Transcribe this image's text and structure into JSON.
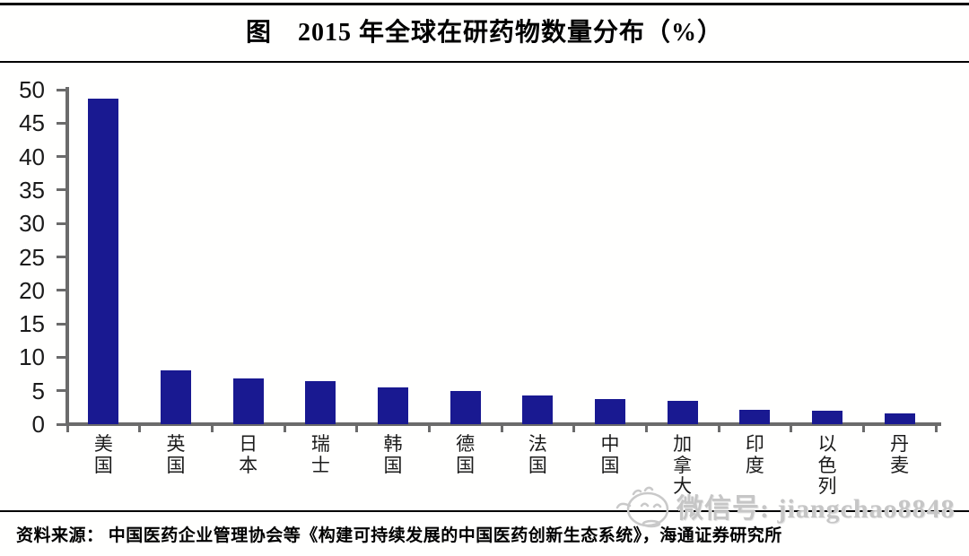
{
  "header": {
    "title": "图　2015 年全球在研药物数量分布（%）"
  },
  "chart_data": {
    "type": "bar",
    "title": "2015 年全球在研药物数量分布（%）",
    "categories": [
      "美国",
      "英国",
      "日本",
      "瑞士",
      "韩国",
      "德国",
      "法国",
      "中国",
      "加拿大",
      "印度",
      "以色列",
      "丹麦"
    ],
    "values": [
      48.7,
      8.0,
      6.9,
      6.4,
      5.5,
      5.0,
      4.3,
      3.8,
      3.5,
      2.1,
      2.0,
      1.6
    ],
    "xlabel": "",
    "ylabel": "",
    "ylim": [
      0,
      50
    ],
    "ytick_interval": 5,
    "ytick_labels": [
      "0",
      "5",
      "10",
      "15",
      "20",
      "25",
      "30",
      "35",
      "40",
      "45",
      "50"
    ],
    "grid": false,
    "legend": false,
    "bar_color": "#191991",
    "axis_color": "#6b6b6b"
  },
  "watermark": {
    "icon": "wechat-mascot-icon",
    "text": "微信号: jiangchao8848",
    "color": "#c6c6c6"
  },
  "footer": {
    "source": "资料来源： 中国医药企业管理协会等《构建可持续发展的中国医药创新生态系统》，海通证券研究所"
  }
}
